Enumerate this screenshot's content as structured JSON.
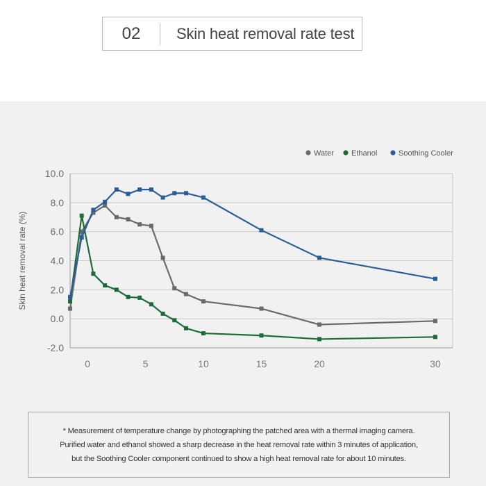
{
  "header": {
    "number": "02",
    "title": "Skin heat removal rate test"
  },
  "chart_data": {
    "type": "line",
    "title": "",
    "xlabel": "",
    "ylabel": "Skin heat removal rate (%)",
    "xlim": [
      -1.5,
      31.5
    ],
    "ylim": [
      -2.0,
      10.0
    ],
    "x_ticks": [
      0,
      5,
      10,
      15,
      20,
      30
    ],
    "x_tick_labels": [
      "0",
      "5",
      "10",
      "15",
      "20",
      "30"
    ],
    "x_tick_positions": [
      0,
      5,
      10,
      15,
      20,
      30
    ],
    "y_ticks": [
      -2.0,
      0.0,
      2.0,
      4.0,
      6.0,
      8.0,
      10.0
    ],
    "y_tick_labels": [
      "-2.0",
      "0.0",
      "2.0",
      "4.0",
      "6.0",
      "8.0",
      "10.0"
    ],
    "grid": true,
    "legend_position": "top-right",
    "series": [
      {
        "name": "Water",
        "color": "#6a6a6a",
        "x": [
          -1.5,
          -0.5,
          0.5,
          1.5,
          2.5,
          3.5,
          4.5,
          5.5,
          6.5,
          7.5,
          8.5,
          10,
          15,
          20,
          30
        ],
        "y": [
          0.7,
          6.0,
          7.3,
          7.8,
          7.0,
          6.85,
          6.5,
          6.4,
          4.2,
          2.1,
          1.7,
          1.2,
          0.7,
          -0.4,
          -0.15
        ]
      },
      {
        "name": "Ethanol",
        "color": "#1d6b3a",
        "x": [
          -1.5,
          -0.5,
          0.5,
          1.5,
          2.5,
          3.5,
          4.5,
          5.5,
          6.5,
          7.5,
          8.5,
          10,
          15,
          20,
          30
        ],
        "y": [
          1.2,
          7.1,
          3.1,
          2.3,
          2.0,
          1.5,
          1.45,
          1.0,
          0.35,
          -0.1,
          -0.65,
          -1.0,
          -1.15,
          -1.4,
          -1.25
        ]
      },
      {
        "name": "Soothing Cooler",
        "color": "#2b5d96",
        "x": [
          -1.5,
          -0.5,
          0.5,
          1.5,
          2.5,
          3.5,
          4.5,
          5.5,
          6.5,
          7.5,
          8.5,
          10,
          15,
          20,
          30
        ],
        "y": [
          1.5,
          5.6,
          7.5,
          8.05,
          8.9,
          8.6,
          8.9,
          8.9,
          8.35,
          8.65,
          8.65,
          8.35,
          6.1,
          4.2,
          2.75
        ]
      }
    ]
  },
  "note": {
    "lines": [
      "* Measurement of temperature change by photographing the patched area with a thermal imaging camera.",
      "Purified water and ethanol showed a sharp decrease in the heat removal rate within 3 minutes of application,",
      "but the Soothing Cooler component continued to show a high heat removal rate for about 10 minutes."
    ]
  }
}
